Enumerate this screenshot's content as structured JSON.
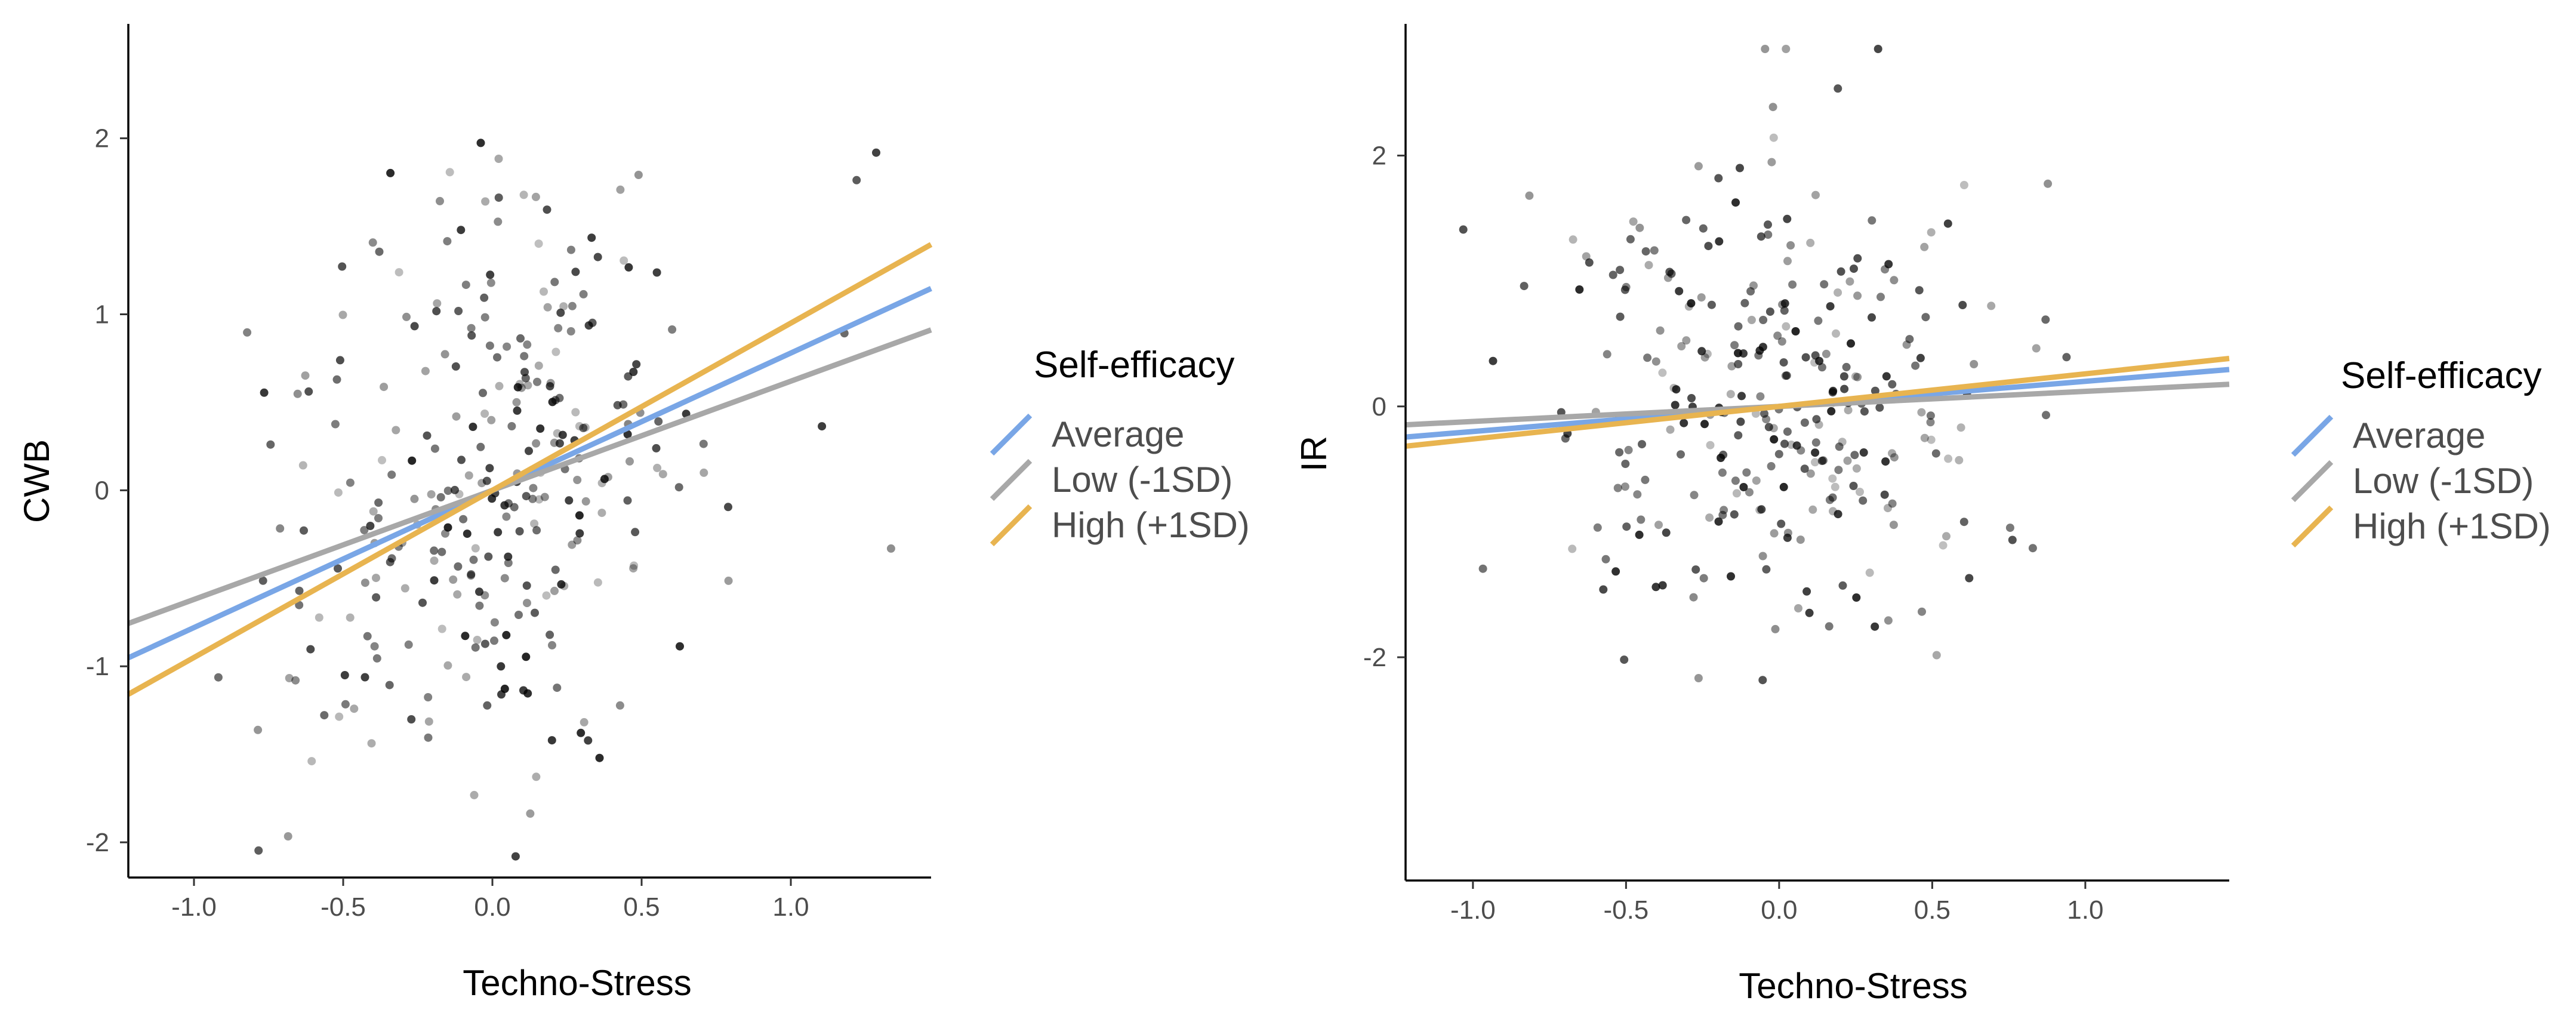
{
  "chart_data": [
    {
      "type": "scatter",
      "title": "",
      "xlabel": "Techno-Stress",
      "ylabel": "CWB",
      "xlim": [
        -1.22,
        1.47
      ],
      "ylim": [
        -2.2,
        2.65
      ],
      "xticks": [
        -1.0,
        -0.5,
        0.0,
        0.5,
        1.0
      ],
      "xtick_labels": [
        "-1.0",
        "-0.5",
        "0.0",
        "0.5",
        "1.0"
      ],
      "yticks": [
        -2,
        -1,
        0,
        1,
        2
      ],
      "ytick_labels": [
        "-2",
        "-1",
        "0",
        "1",
        "2"
      ],
      "grid": false,
      "legend": {
        "title": "Self-efficacy",
        "position": "right",
        "entries": [
          {
            "label": "Average",
            "color": "#79a6e6"
          },
          {
            "label": "Low (-1SD)",
            "color": "#a8a8a8"
          },
          {
            "label": "High (+1SD)",
            "color": "#e8b450"
          }
        ]
      },
      "lines": [
        {
          "name": "Average",
          "color": "#79a6e6",
          "intercept": 0.0,
          "slope": 0.78
        },
        {
          "name": "Low (-1SD)",
          "color": "#a8a8a8",
          "intercept": 0.0,
          "slope": 0.62
        },
        {
          "name": "High (+1SD)",
          "color": "#e8b450",
          "intercept": 0.0,
          "slope": 0.95
        }
      ],
      "point_seed": 7,
      "point_count": 300
    },
    {
      "type": "scatter",
      "title": "",
      "xlabel": "Techno-Stress",
      "ylabel": "IR",
      "xlim": [
        -1.22,
        1.47
      ],
      "ylim": [
        -3.78,
        3.05
      ],
      "xticks": [
        -1.0,
        -0.5,
        0.0,
        0.5,
        1.0
      ],
      "xtick_labels": [
        "-1.0",
        "-0.5",
        "0.0",
        "0.5",
        "1.0"
      ],
      "yticks": [
        -2,
        0,
        2
      ],
      "ytick_labels": [
        "-2",
        "0",
        "2"
      ],
      "grid": false,
      "legend": {
        "title": "Self-efficacy",
        "position": "right",
        "entries": [
          {
            "label": "Average",
            "color": "#79a6e6"
          },
          {
            "label": "Low (-1SD)",
            "color": "#a8a8a8"
          },
          {
            "label": "High (+1SD)",
            "color": "#e8b450"
          }
        ]
      },
      "lines": [
        {
          "name": "Average",
          "color": "#79a6e6",
          "intercept": 0.0,
          "slope": 0.2
        },
        {
          "name": "Low (-1SD)",
          "color": "#a8a8a8",
          "intercept": 0.0,
          "slope": 0.12
        },
        {
          "name": "High (+1SD)",
          "color": "#e8b450",
          "intercept": 0.0,
          "slope": 0.26
        }
      ],
      "point_seed": 19,
      "point_count": 300
    }
  ]
}
